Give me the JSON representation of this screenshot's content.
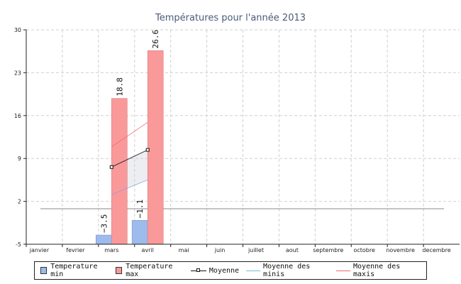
{
  "chart_data": {
    "type": "bar",
    "title": "Températures pour l'année 2013",
    "categories": [
      "janvier",
      "fevrier",
      "mars",
      "avril",
      "mai",
      "juin",
      "juillet",
      "aout",
      "septembre",
      "octobre",
      "novembre",
      "decembre"
    ],
    "ylim": [
      -5,
      30
    ],
    "yticks": [
      -5,
      2,
      9,
      16,
      23,
      30
    ],
    "grid": true,
    "legend_position": "bottom",
    "series": [
      {
        "name": "Temperature min",
        "kind": "bar",
        "color": "#9dbbec",
        "values": [
          null,
          null,
          -3.5,
          -1.1,
          null,
          null,
          null,
          null,
          null,
          null,
          null,
          null
        ],
        "labels": [
          "",
          "",
          "−3.5",
          "−1.1",
          "",
          "",
          "",
          "",
          "",
          "",
          "",
          ""
        ]
      },
      {
        "name": "Temperature max",
        "kind": "bar",
        "color": "#fa9999",
        "values": [
          null,
          null,
          18.8,
          26.6,
          null,
          null,
          null,
          null,
          null,
          null,
          null,
          null
        ],
        "labels": [
          "",
          "",
          "18.8",
          "26.6",
          "",
          "",
          "",
          "",
          "",
          "",
          "",
          ""
        ]
      },
      {
        "name": "Moyenne",
        "kind": "line-marker",
        "color": "#111111",
        "values": [
          null,
          null,
          7.6,
          10.4,
          null,
          null,
          null,
          null,
          null,
          null,
          null,
          null
        ]
      },
      {
        "name": "Moyenne des minis",
        "kind": "line",
        "color": "#7f9ee8",
        "values": [
          null,
          null,
          3.1,
          5.5,
          null,
          null,
          null,
          null,
          null,
          null,
          null,
          null
        ]
      },
      {
        "name": "Moyenne des maxis",
        "kind": "line",
        "color": "#f06a6a",
        "values": [
          null,
          null,
          10.9,
          14.9,
          null,
          null,
          null,
          null,
          null,
          null,
          null,
          null
        ]
      }
    ],
    "reference_line": {
      "value": 0.8,
      "color": "#888888"
    }
  }
}
